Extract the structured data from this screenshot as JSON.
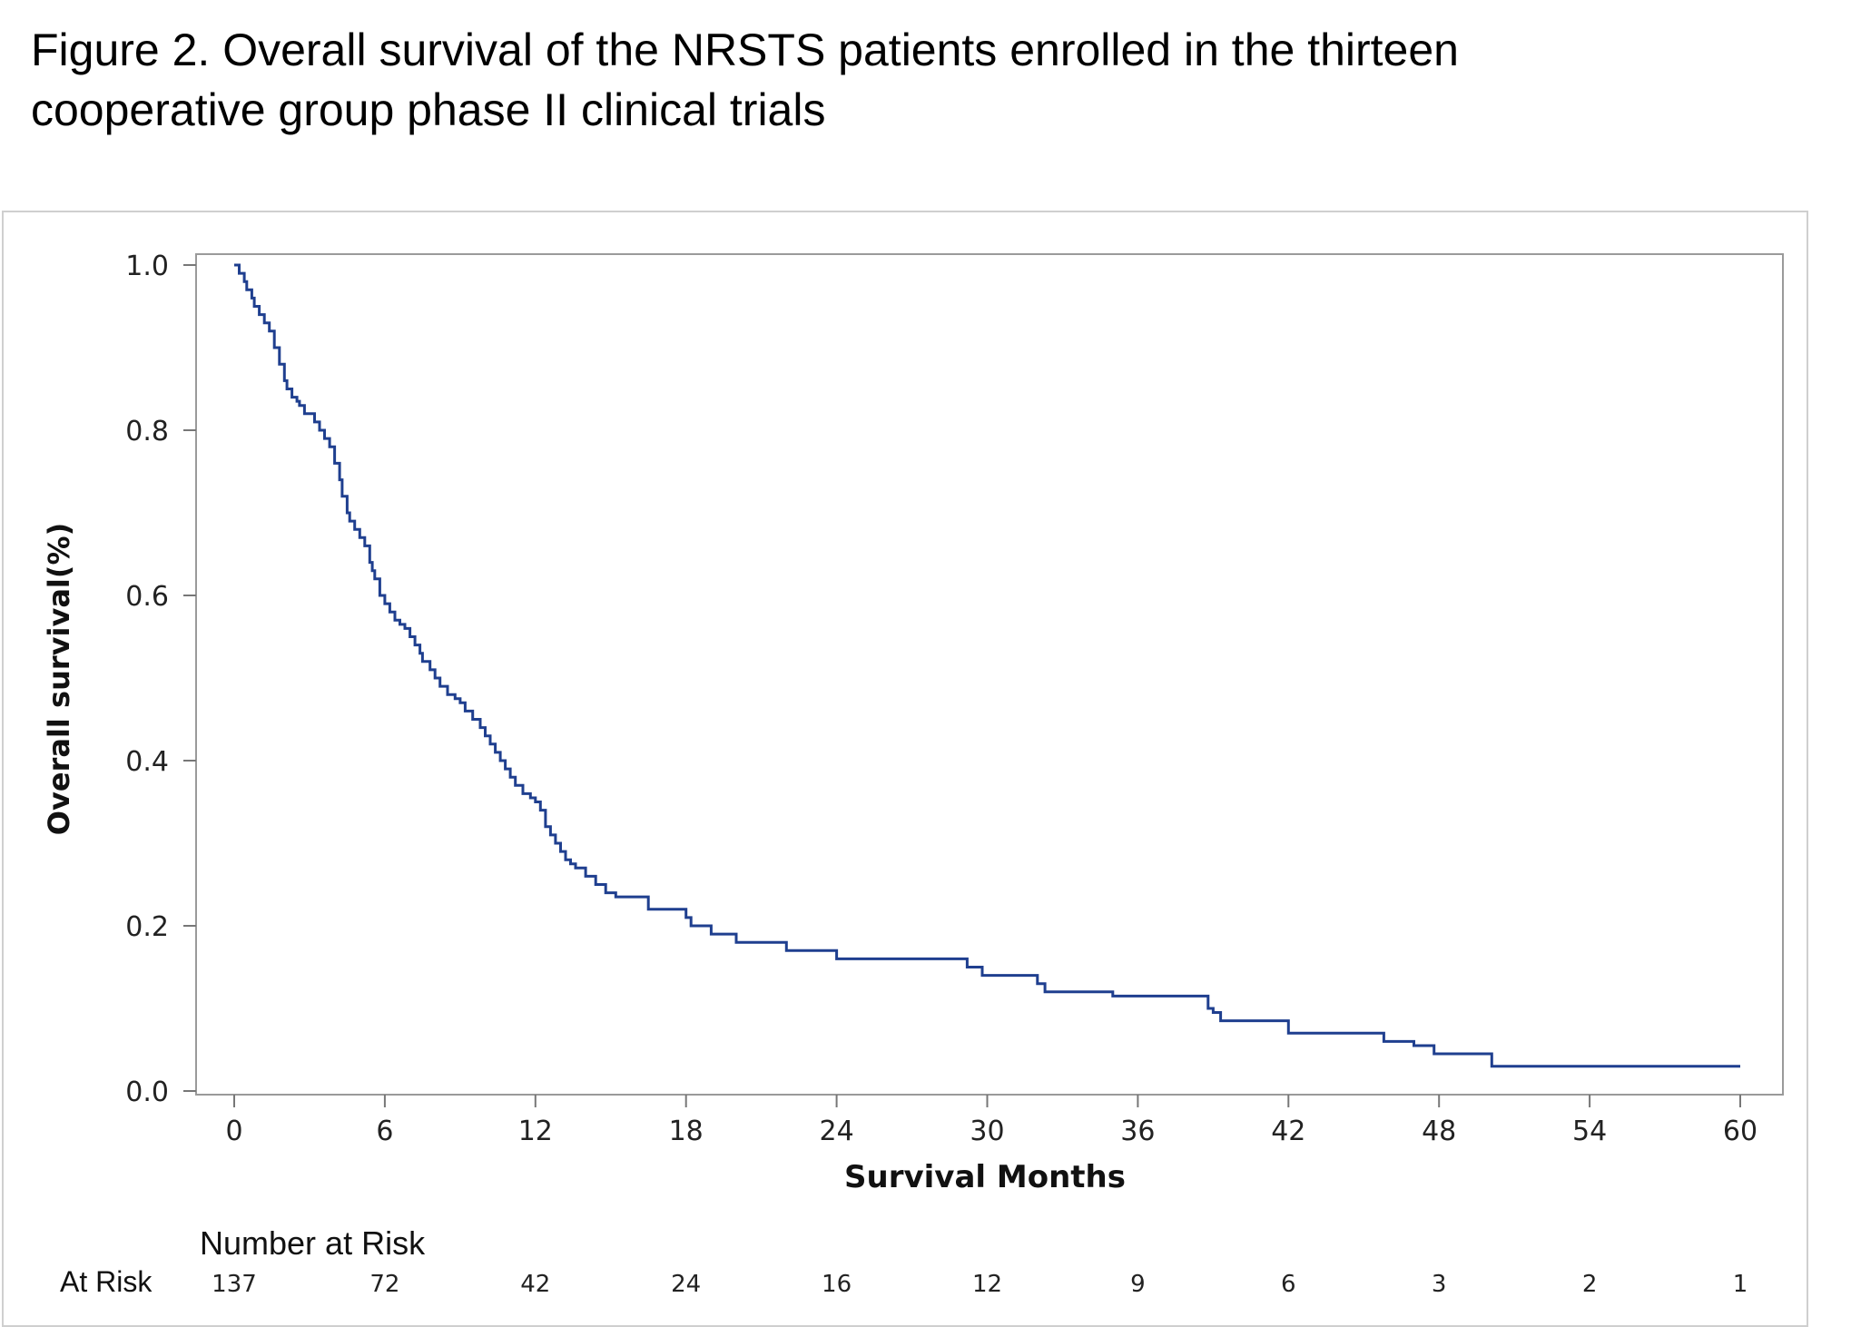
{
  "title": {
    "line1": "Figure 2. Overall survival of the NRSTS patients enrolled in the thirteen",
    "line2": "cooperative group phase II clinical trials"
  },
  "chart_data": {
    "type": "line",
    "subtype": "kaplan-meier-step",
    "xlabel": "Survival Months",
    "ylabel": "Overall survival(%)",
    "xlim": [
      0,
      60
    ],
    "ylim": [
      0,
      1.0
    ],
    "xticks": [
      "0",
      "6",
      "12",
      "18",
      "24",
      "30",
      "36",
      "42",
      "48",
      "54",
      "60"
    ],
    "yticks": [
      "0.0",
      "0.2",
      "0.4",
      "0.6",
      "0.8",
      "1.0"
    ],
    "grid": false,
    "line_color": "#1f3f8f",
    "series": [
      {
        "x": [
          0,
          0.2,
          0.4,
          0.5,
          0.7,
          0.8,
          1.0,
          1.2,
          1.4,
          1.6,
          1.8,
          2.0,
          2.1,
          2.3,
          2.5,
          2.6,
          2.8,
          3.2,
          3.4,
          3.6,
          3.8,
          4.0,
          4.2,
          4.3,
          4.5,
          4.6,
          4.8,
          5.0,
          5.2,
          5.4,
          5.5,
          5.6,
          5.8,
          6.0,
          6.2,
          6.4,
          6.6,
          6.8,
          7.0,
          7.2,
          7.4,
          7.5,
          7.8,
          8.0,
          8.2,
          8.5,
          8.8,
          9.0,
          9.2,
          9.5,
          9.8,
          10.0,
          10.2,
          10.4,
          10.6,
          10.8,
          11.0,
          11.2,
          11.5,
          11.8,
          12.0,
          12.2,
          12.4,
          12.6,
          12.8,
          13.0,
          13.2,
          13.4,
          13.6,
          14.0,
          14.4,
          14.8,
          15.2,
          15.6,
          16.0,
          16.5,
          17.5,
          18.0,
          18.2,
          18.5,
          19.0,
          20.0,
          21.0,
          22.0,
          23.0,
          24.0,
          26.0,
          28.0,
          29.2,
          29.8,
          30.5,
          32.0,
          32.3,
          35.0,
          37.0,
          38.0,
          38.8,
          39.0,
          39.3,
          40.5,
          42.0,
          44.0,
          45.8,
          47.0,
          47.8,
          49.0,
          50.1,
          52.0,
          55.0,
          60.0
        ],
        "y": [
          1.0,
          0.99,
          0.98,
          0.97,
          0.96,
          0.95,
          0.94,
          0.93,
          0.92,
          0.9,
          0.88,
          0.86,
          0.85,
          0.84,
          0.835,
          0.83,
          0.82,
          0.81,
          0.8,
          0.79,
          0.78,
          0.76,
          0.74,
          0.72,
          0.7,
          0.69,
          0.68,
          0.67,
          0.66,
          0.64,
          0.63,
          0.62,
          0.6,
          0.59,
          0.58,
          0.57,
          0.565,
          0.56,
          0.55,
          0.54,
          0.53,
          0.52,
          0.51,
          0.5,
          0.49,
          0.48,
          0.475,
          0.47,
          0.46,
          0.45,
          0.44,
          0.43,
          0.42,
          0.41,
          0.4,
          0.39,
          0.38,
          0.37,
          0.36,
          0.355,
          0.35,
          0.34,
          0.32,
          0.31,
          0.3,
          0.29,
          0.28,
          0.275,
          0.27,
          0.26,
          0.25,
          0.24,
          0.235,
          0.235,
          0.235,
          0.22,
          0.22,
          0.21,
          0.2,
          0.2,
          0.19,
          0.18,
          0.18,
          0.17,
          0.17,
          0.16,
          0.16,
          0.16,
          0.15,
          0.14,
          0.14,
          0.13,
          0.12,
          0.115,
          0.115,
          0.115,
          0.1,
          0.095,
          0.085,
          0.085,
          0.07,
          0.07,
          0.06,
          0.055,
          0.045,
          0.045,
          0.03,
          0.03,
          0.03,
          0.03
        ]
      }
    ],
    "risk_table": {
      "heading": "Number at Risk",
      "row_label": "At Risk",
      "times": [
        0,
        6,
        12,
        18,
        24,
        30,
        36,
        42,
        48,
        54,
        60
      ],
      "values": [
        "137",
        "72",
        "42",
        "24",
        "16",
        "12",
        "9",
        "6",
        "3",
        "2",
        "1"
      ]
    }
  }
}
